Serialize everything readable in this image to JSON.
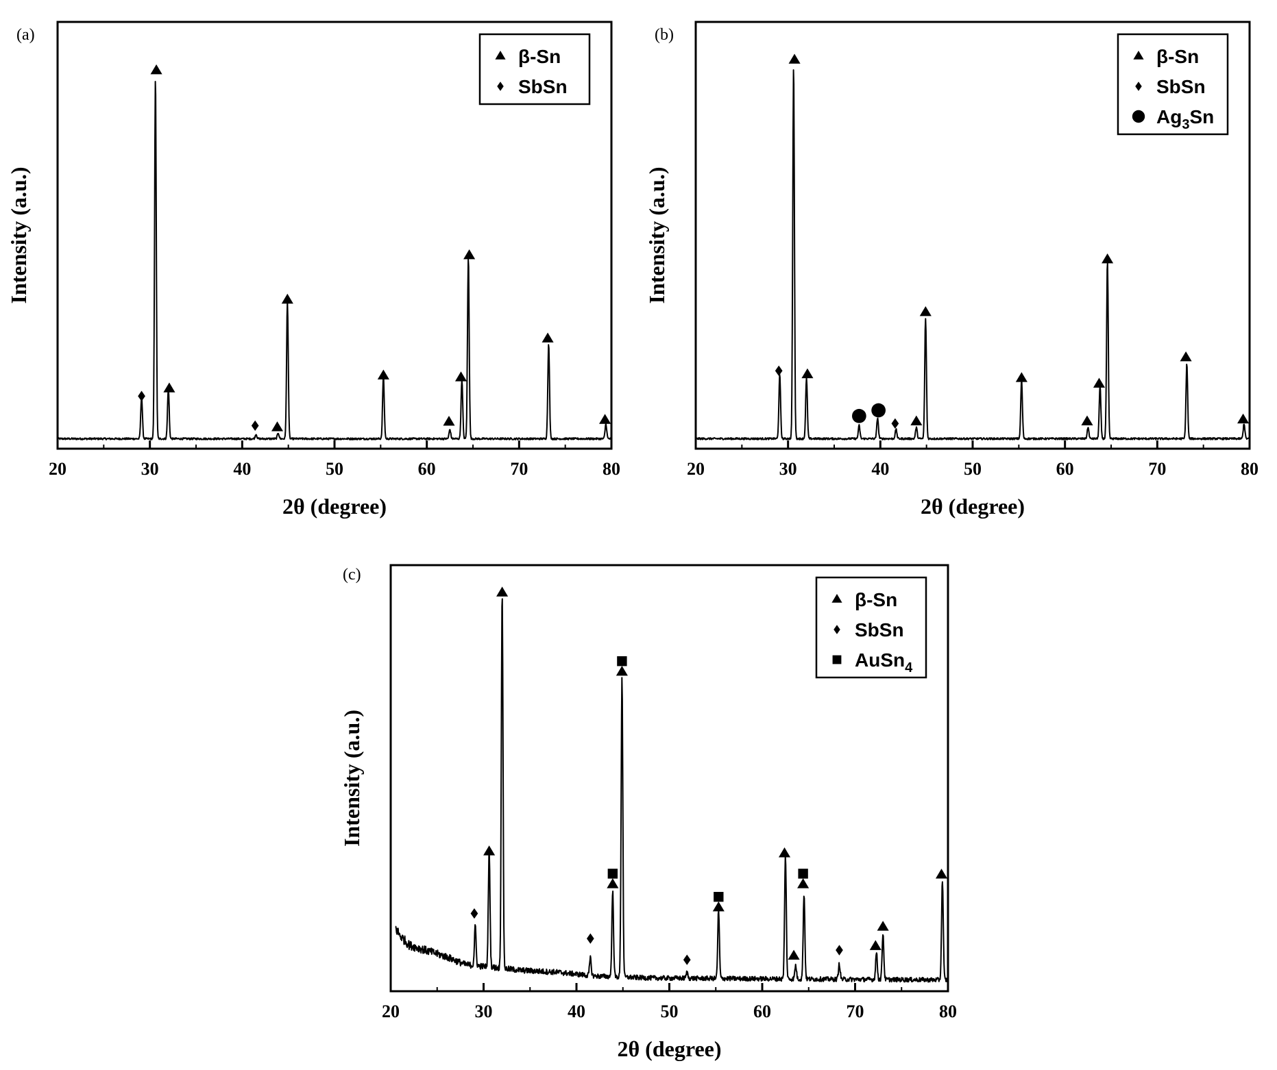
{
  "chart_data": [
    {
      "panel_label": "(a)",
      "type": "line",
      "xlabel": "2θ (degree)",
      "ylabel": "Intensity (a.u.)",
      "xlim": [
        20,
        80
      ],
      "ylim": [
        0,
        100
      ],
      "xticks": [
        20,
        30,
        40,
        50,
        60,
        70,
        80
      ],
      "yticks_shown": false,
      "grid": false,
      "legend_position": "top-right",
      "legend": [
        {
          "marker": "triangle",
          "label": "β-Sn",
          "sub": ""
        },
        {
          "marker": "diamond",
          "label": "SbSn",
          "sub": ""
        }
      ],
      "baseline": 1.2,
      "peaks": [
        {
          "x": 29.1,
          "h": 11.5
        },
        {
          "x": 30.6,
          "h": 98.0
        },
        {
          "x": 32.0,
          "h": 13.5
        },
        {
          "x": 41.5,
          "h": 1.2
        },
        {
          "x": 43.9,
          "h": 1.6
        },
        {
          "x": 44.9,
          "h": 37.0
        },
        {
          "x": 55.3,
          "h": 17.0
        },
        {
          "x": 62.5,
          "h": 2.5
        },
        {
          "x": 63.8,
          "h": 16.0
        },
        {
          "x": 64.5,
          "h": 49.0
        },
        {
          "x": 73.2,
          "h": 26.0
        },
        {
          "x": 79.4,
          "h": 4.0
        }
      ],
      "markers": [
        {
          "x": 29.1,
          "y": 12.0,
          "shape": "diamond"
        },
        {
          "x": 30.7,
          "y": 100.0,
          "shape": "triangle"
        },
        {
          "x": 32.1,
          "y": 14.0,
          "shape": "triangle"
        },
        {
          "x": 41.4,
          "y": 4.0,
          "shape": "diamond"
        },
        {
          "x": 43.8,
          "y": 3.5,
          "shape": "triangle"
        },
        {
          "x": 44.9,
          "y": 38.0,
          "shape": "triangle"
        },
        {
          "x": 55.3,
          "y": 17.5,
          "shape": "triangle"
        },
        {
          "x": 62.4,
          "y": 5.0,
          "shape": "triangle"
        },
        {
          "x": 63.7,
          "y": 17.0,
          "shape": "triangle"
        },
        {
          "x": 64.6,
          "y": 50.0,
          "shape": "triangle"
        },
        {
          "x": 73.1,
          "y": 27.5,
          "shape": "triangle"
        },
        {
          "x": 79.3,
          "y": 5.5,
          "shape": "triangle"
        }
      ]
    },
    {
      "panel_label": "(b)",
      "type": "line",
      "xlabel": "2θ (degree)",
      "ylabel": "Intensity (a.u.)",
      "xlim": [
        20,
        80
      ],
      "ylim": [
        0,
        100
      ],
      "xticks": [
        20,
        30,
        40,
        50,
        60,
        70,
        80
      ],
      "yticks_shown": false,
      "grid": false,
      "legend_position": "top-right",
      "legend": [
        {
          "marker": "triangle",
          "label": "β-Sn",
          "sub": ""
        },
        {
          "marker": "diamond",
          "label": "SbSn",
          "sub": ""
        },
        {
          "marker": "circle",
          "label": "Ag",
          "sub": "3",
          "suffix": "Sn"
        }
      ],
      "baseline": 1.2,
      "peaks": [
        {
          "x": 29.1,
          "h": 17.0
        },
        {
          "x": 30.6,
          "h": 99.0
        },
        {
          "x": 32.0,
          "h": 16.0
        },
        {
          "x": 37.7,
          "h": 3.5
        },
        {
          "x": 39.7,
          "h": 5.5
        },
        {
          "x": 41.7,
          "h": 2.5
        },
        {
          "x": 43.9,
          "h": 3.0
        },
        {
          "x": 44.9,
          "h": 32.0
        },
        {
          "x": 55.3,
          "h": 15.5
        },
        {
          "x": 62.5,
          "h": 3.0
        },
        {
          "x": 63.8,
          "h": 14.0
        },
        {
          "x": 64.6,
          "h": 47.0
        },
        {
          "x": 73.2,
          "h": 20.0
        },
        {
          "x": 79.4,
          "h": 4.0
        }
      ],
      "markers": [
        {
          "x": 29.0,
          "y": 18.5,
          "shape": "diamond"
        },
        {
          "x": 30.7,
          "y": 101.0,
          "shape": "triangle"
        },
        {
          "x": 32.1,
          "y": 17.5,
          "shape": "triangle"
        },
        {
          "x": 37.7,
          "y": 6.5,
          "shape": "circle"
        },
        {
          "x": 39.8,
          "y": 8.0,
          "shape": "circle"
        },
        {
          "x": 41.6,
          "y": 4.5,
          "shape": "diamond"
        },
        {
          "x": 43.9,
          "y": 5.0,
          "shape": "triangle"
        },
        {
          "x": 44.9,
          "y": 34.0,
          "shape": "triangle"
        },
        {
          "x": 55.3,
          "y": 16.5,
          "shape": "triangle"
        },
        {
          "x": 62.4,
          "y": 5.0,
          "shape": "triangle"
        },
        {
          "x": 63.7,
          "y": 15.0,
          "shape": "triangle"
        },
        {
          "x": 64.6,
          "y": 48.0,
          "shape": "triangle"
        },
        {
          "x": 73.1,
          "y": 22.0,
          "shape": "triangle"
        },
        {
          "x": 79.3,
          "y": 5.5,
          "shape": "triangle"
        }
      ]
    },
    {
      "panel_label": "(c)",
      "type": "line",
      "xlabel": "2θ (degree)",
      "ylabel": "Intensity (a.u.)",
      "xlim": [
        20,
        80
      ],
      "ylim": [
        0,
        100
      ],
      "xticks": [
        20,
        30,
        40,
        50,
        60,
        70,
        80
      ],
      "yticks_shown": false,
      "grid": false,
      "legend_position": "top-right",
      "legend": [
        {
          "marker": "triangle",
          "label": "β-Sn",
          "sub": ""
        },
        {
          "marker": "diamond",
          "label": "SbSn",
          "sub": ""
        },
        {
          "marker": "square",
          "label": "AuSn",
          "sub": "4"
        }
      ],
      "baseline": 1.5,
      "noise": [
        {
          "x": 20.5,
          "y": 15.0
        },
        {
          "x": 21.0,
          "y": 13.0
        },
        {
          "x": 22.0,
          "y": 10.5
        },
        {
          "x": 24.0,
          "y": 9.0
        },
        {
          "x": 26.0,
          "y": 7.5
        },
        {
          "x": 28.0,
          "y": 5.5
        },
        {
          "x": 34.0,
          "y": 4.0
        },
        {
          "x": 38.0,
          "y": 3.5
        },
        {
          "x": 42.0,
          "y": 2.5
        },
        {
          "x": 48.0,
          "y": 2.0
        },
        {
          "x": 60.0,
          "y": 1.8
        },
        {
          "x": 80.0,
          "y": 1.5
        }
      ],
      "peaks": [
        {
          "x": 29.1,
          "h": 10.0
        },
        {
          "x": 30.6,
          "h": 30.0
        },
        {
          "x": 32.0,
          "h": 98.0
        },
        {
          "x": 41.5,
          "h": 4.5
        },
        {
          "x": 43.9,
          "h": 22.0
        },
        {
          "x": 44.9,
          "h": 78.0
        },
        {
          "x": 51.9,
          "h": 1.5
        },
        {
          "x": 55.3,
          "h": 17.5
        },
        {
          "x": 62.5,
          "h": 32.0
        },
        {
          "x": 63.6,
          "h": 3.5
        },
        {
          "x": 64.5,
          "h": 22.0
        },
        {
          "x": 68.3,
          "h": 4.0
        },
        {
          "x": 72.3,
          "h": 7.0
        },
        {
          "x": 73.0,
          "h": 12.0
        },
        {
          "x": 79.4,
          "h": 26.0
        }
      ],
      "markers": [
        {
          "x": 29.0,
          "y": 18.0,
          "shape": "diamond"
        },
        {
          "x": 30.6,
          "y": 34.0,
          "shape": "triangle"
        },
        {
          "x": 32.0,
          "y": 101.0,
          "shape": "triangle"
        },
        {
          "x": 41.5,
          "y": 11.5,
          "shape": "diamond"
        },
        {
          "x": 43.9,
          "y": 25.5,
          "shape": "triangle"
        },
        {
          "x": 43.9,
          "y": 28.3,
          "shape": "square"
        },
        {
          "x": 44.9,
          "y": 80.5,
          "shape": "triangle"
        },
        {
          "x": 44.9,
          "y": 83.3,
          "shape": "square"
        },
        {
          "x": 51.9,
          "y": 6.0,
          "shape": "diamond"
        },
        {
          "x": 55.3,
          "y": 19.5,
          "shape": "triangle"
        },
        {
          "x": 55.3,
          "y": 22.3,
          "shape": "square"
        },
        {
          "x": 62.4,
          "y": 33.5,
          "shape": "triangle"
        },
        {
          "x": 63.4,
          "y": 7.0,
          "shape": "triangle"
        },
        {
          "x": 64.4,
          "y": 25.5,
          "shape": "triangle"
        },
        {
          "x": 64.4,
          "y": 28.3,
          "shape": "square"
        },
        {
          "x": 68.3,
          "y": 8.5,
          "shape": "diamond"
        },
        {
          "x": 72.2,
          "y": 9.5,
          "shape": "triangle"
        },
        {
          "x": 73.0,
          "y": 14.5,
          "shape": "triangle"
        },
        {
          "x": 79.3,
          "y": 28.0,
          "shape": "triangle"
        }
      ]
    }
  ]
}
